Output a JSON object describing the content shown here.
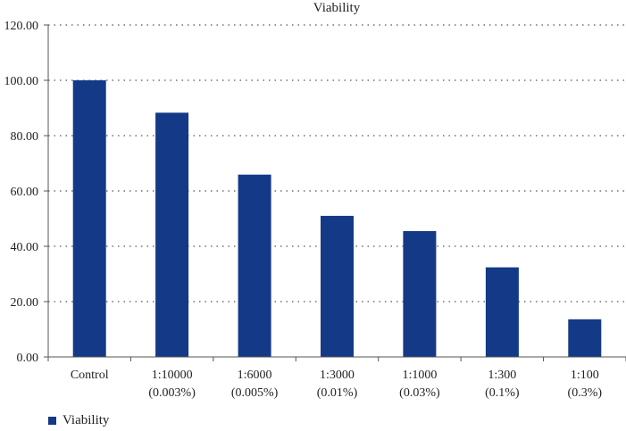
{
  "chart_data": {
    "type": "bar",
    "title": "Viability",
    "xlabel": "",
    "ylabel": "",
    "ylim": [
      0,
      120
    ],
    "yticks": [
      "0.00",
      "20.00",
      "40.00",
      "60.00",
      "80.00",
      "100.00",
      "120.00"
    ],
    "categories": [
      [
        "Control"
      ],
      [
        "1:10000",
        "(0.003%)"
      ],
      [
        "1:6000",
        "(0.005%)"
      ],
      [
        "1:3000",
        "(0.01%)"
      ],
      [
        "1:1000",
        "(0.03%)"
      ],
      [
        "1:300",
        "(0.1%)"
      ],
      [
        "1:100",
        "(0.3%)"
      ]
    ],
    "series": [
      {
        "name": "Viability",
        "values": [
          100,
          88.3,
          65.9,
          51,
          45.5,
          32.4,
          13.6
        ]
      }
    ],
    "bar_color": "#143987",
    "grid": "horizontal-dotted",
    "legend_position": "bottom-left"
  }
}
